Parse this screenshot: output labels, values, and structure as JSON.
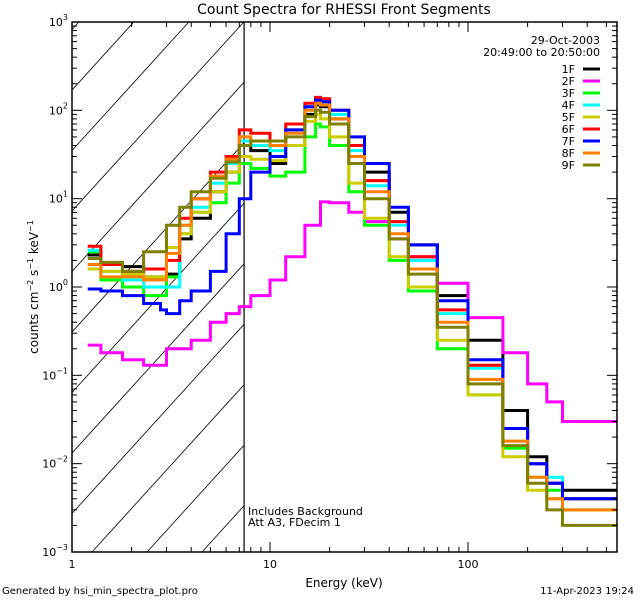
{
  "chart_data": {
    "type": "line",
    "title": "Count Spectra for RHESSI Front Segments",
    "xlabel": "Energy (keV)",
    "ylabel": "counts cm^-2 s^-1 keV^-1",
    "xscale": "log",
    "yscale": "log",
    "xlim": [
      1,
      300
    ],
    "ylim": [
      0.001,
      1000
    ],
    "x_tick_labels": [
      "1",
      "10",
      "100"
    ],
    "y_tick_labels": [
      {
        "base": "10",
        "exp": "3"
      },
      {
        "base": "10",
        "exp": "2"
      },
      {
        "base": "10",
        "exp": "1"
      },
      {
        "base": "10",
        "exp": "0"
      },
      {
        "base": "10",
        "exp": "−1"
      },
      {
        "base": "10",
        "exp": "−2"
      },
      {
        "base": "10",
        "exp": "−3"
      }
    ],
    "date": "29-Oct-2003",
    "time_range": "20:49:00 to 20:50:00",
    "annotation_lines": [
      "Includes Background",
      "Att A3, FDecim  1"
    ],
    "shaded_region": {
      "style": "hatched",
      "x_range": [
        1,
        6
      ]
    },
    "legend_position": "top-right",
    "series": [
      {
        "name": "1F",
        "color": "#000000",
        "x": [
          1.2,
          1.4,
          1.8,
          2.3,
          3.0,
          3.5,
          4,
          5,
          6,
          7,
          8,
          10,
          12,
          15,
          17,
          18,
          20,
          25,
          30,
          40,
          50,
          70,
          100,
          150,
          200,
          250,
          300
        ],
        "y": [
          2.3,
          1.8,
          1.7,
          1.3,
          1.4,
          3.5,
          6,
          12,
          20,
          40,
          35,
          25,
          40,
          90,
          115,
          110,
          80,
          40,
          20,
          7,
          3,
          0.8,
          0.25,
          0.04,
          0.012,
          0.006,
          0.005
        ]
      },
      {
        "name": "2F",
        "color": "#ff00ff",
        "x": [
          1.2,
          1.4,
          1.8,
          2.3,
          3.0,
          4,
          5,
          6,
          7,
          8,
          10,
          12,
          15,
          18,
          20,
          25,
          30,
          40,
          50,
          70,
          100,
          150,
          200,
          250,
          300
        ],
        "y": [
          0.22,
          0.18,
          0.15,
          0.13,
          0.2,
          0.25,
          0.4,
          0.5,
          0.6,
          0.8,
          1.2,
          2.2,
          5,
          9.2,
          9,
          7,
          5.5,
          3.5,
          2.2,
          1.1,
          0.45,
          0.18,
          0.08,
          0.05,
          0.03
        ]
      },
      {
        "name": "3F",
        "color": "#00ff00",
        "x": [
          1.2,
          1.4,
          1.8,
          2.3,
          3.0,
          3.5,
          4,
          5,
          6,
          7,
          8,
          10,
          12,
          15,
          17,
          18,
          20,
          25,
          30,
          40,
          50,
          70,
          100,
          150,
          200,
          250,
          300
        ],
        "y": [
          2.5,
          1.2,
          1.0,
          0.8,
          1.3,
          5,
          7,
          9,
          15,
          25,
          22,
          18,
          20,
          50,
          70,
          65,
          40,
          12,
          5,
          2,
          0.9,
          0.2,
          0.06,
          0.015,
          0.007,
          0.005,
          0.004
        ]
      },
      {
        "name": "4F",
        "color": "#00ffff",
        "x": [
          1.2,
          1.4,
          1.8,
          2.3,
          3.0,
          3.5,
          4,
          5,
          6,
          7,
          8,
          10,
          12,
          15,
          17,
          18,
          20,
          25,
          30,
          40,
          50,
          70,
          100,
          150,
          200,
          250,
          300
        ],
        "y": [
          2.6,
          1.5,
          1.2,
          1.0,
          1.0,
          4,
          8,
          15,
          25,
          45,
          40,
          35,
          60,
          110,
          135,
          125,
          90,
          35,
          14,
          5,
          2,
          0.5,
          0.12,
          0.025,
          0.01,
          0.007,
          0.004
        ]
      },
      {
        "name": "5F",
        "color": "#cccc00",
        "x": [
          1.2,
          1.4,
          1.8,
          2.3,
          3.0,
          3.5,
          4,
          5,
          6,
          7,
          8,
          10,
          12,
          15,
          17,
          18,
          20,
          25,
          30,
          40,
          50,
          70,
          100,
          150,
          200,
          250,
          300
        ],
        "y": [
          1.6,
          1.5,
          1.4,
          1.3,
          2.8,
          4,
          7,
          12,
          20,
          30,
          28,
          27,
          40,
          75,
          90,
          80,
          50,
          15,
          6,
          2.2,
          1,
          0.25,
          0.06,
          0.012,
          0.005,
          0.004,
          0.003
        ]
      },
      {
        "name": "6F",
        "color": "#ff0000",
        "x": [
          1.2,
          1.4,
          1.8,
          2.3,
          3.0,
          3.5,
          4,
          5,
          6,
          7,
          8,
          10,
          12,
          15,
          17,
          18,
          20,
          25,
          30,
          40,
          50,
          70,
          100,
          150,
          200,
          250,
          300
        ],
        "y": [
          2.9,
          1.8,
          1.5,
          1.6,
          2.0,
          6,
          10,
          20,
          30,
          60,
          55,
          45,
          70,
          120,
          140,
          135,
          100,
          40,
          16,
          5.5,
          2.2,
          0.55,
          0.13,
          0.025,
          0.01,
          0.006,
          0.004
        ]
      },
      {
        "name": "7F",
        "color": "#0000ff",
        "x": [
          1.2,
          1.4,
          1.8,
          2.3,
          2.8,
          3.0,
          3.5,
          4,
          5,
          6,
          7,
          8,
          10,
          12,
          15,
          17,
          18,
          20,
          25,
          30,
          40,
          50,
          70,
          100,
          150,
          200,
          250,
          300
        ],
        "y": [
          0.95,
          0.9,
          0.8,
          0.65,
          0.55,
          0.5,
          0.7,
          0.9,
          1.5,
          4,
          10,
          20,
          30,
          60,
          110,
          130,
          125,
          100,
          50,
          25,
          8,
          3,
          0.7,
          0.15,
          0.025,
          0.01,
          0.006,
          0.004
        ]
      },
      {
        "name": "8F",
        "color": "#ff8000",
        "x": [
          1.2,
          1.4,
          1.8,
          2.3,
          3.0,
          3.5,
          4,
          5,
          6,
          7,
          8,
          10,
          12,
          15,
          17,
          18,
          20,
          25,
          30,
          40,
          50,
          70,
          100,
          150,
          200,
          250,
          300
        ],
        "y": [
          1.8,
          1.3,
          1.3,
          1.2,
          2.4,
          5,
          10,
          18,
          28,
          50,
          45,
          40,
          55,
          100,
          120,
          115,
          80,
          30,
          12,
          4,
          1.6,
          0.4,
          0.09,
          0.018,
          0.007,
          0.004,
          0.003
        ]
      },
      {
        "name": "9F",
        "color": "#808000",
        "x": [
          1.2,
          1.4,
          1.8,
          2.3,
          3.0,
          3.5,
          4,
          5,
          6,
          7,
          8,
          10,
          12,
          15,
          17,
          18,
          20,
          25,
          30,
          40,
          50,
          70,
          100,
          150,
          200,
          250,
          300
        ],
        "y": [
          2.1,
          1.9,
          1.5,
          2.5,
          5,
          8,
          12,
          17,
          26,
          40,
          45,
          45,
          50,
          85,
          100,
          95,
          70,
          25,
          10,
          3.5,
          1.4,
          0.35,
          0.08,
          0.016,
          0.006,
          0.003,
          0.002
        ]
      }
    ]
  },
  "footer": {
    "generated_by": "Generated by hsi_min_spectra_plot.pro",
    "timestamp": "11-Apr-2023 19:24"
  }
}
